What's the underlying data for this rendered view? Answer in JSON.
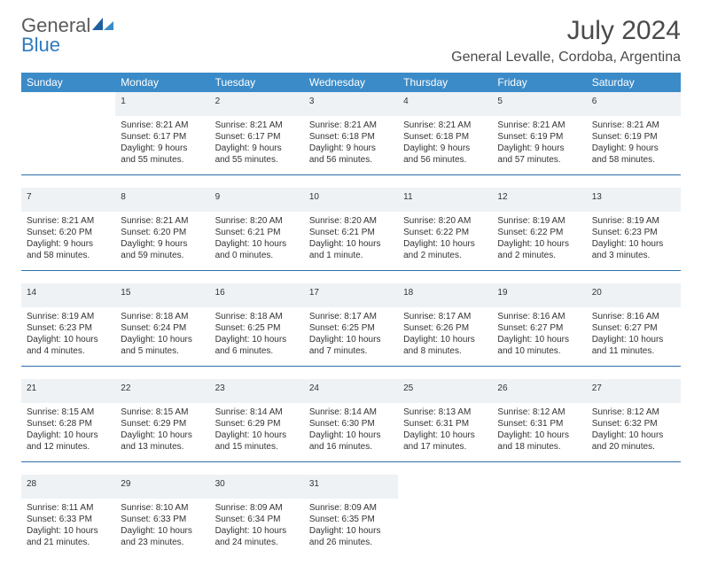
{
  "logo": {
    "word1": "General",
    "word2": "Blue"
  },
  "title": "July 2024",
  "location": "General Levalle, Cordoba, Argentina",
  "colors": {
    "header_bg": "#3b8bc8",
    "header_text": "#ffffff",
    "daynum_bg": "#eef2f5",
    "daynum_text": "#6b6b6b",
    "rule": "#2f6fa8",
    "body_text": "#333333",
    "logo_gray": "#5a5a5a",
    "logo_blue": "#2f7bbf"
  },
  "weekdays": [
    "Sunday",
    "Monday",
    "Tuesday",
    "Wednesday",
    "Thursday",
    "Friday",
    "Saturday"
  ],
  "weeks": [
    [
      null,
      {
        "n": "1",
        "sr": "Sunrise: 8:21 AM",
        "ss": "Sunset: 6:17 PM",
        "d1": "Daylight: 9 hours",
        "d2": "and 55 minutes."
      },
      {
        "n": "2",
        "sr": "Sunrise: 8:21 AM",
        "ss": "Sunset: 6:17 PM",
        "d1": "Daylight: 9 hours",
        "d2": "and 55 minutes."
      },
      {
        "n": "3",
        "sr": "Sunrise: 8:21 AM",
        "ss": "Sunset: 6:18 PM",
        "d1": "Daylight: 9 hours",
        "d2": "and 56 minutes."
      },
      {
        "n": "4",
        "sr": "Sunrise: 8:21 AM",
        "ss": "Sunset: 6:18 PM",
        "d1": "Daylight: 9 hours",
        "d2": "and 56 minutes."
      },
      {
        "n": "5",
        "sr": "Sunrise: 8:21 AM",
        "ss": "Sunset: 6:19 PM",
        "d1": "Daylight: 9 hours",
        "d2": "and 57 minutes."
      },
      {
        "n": "6",
        "sr": "Sunrise: 8:21 AM",
        "ss": "Sunset: 6:19 PM",
        "d1": "Daylight: 9 hours",
        "d2": "and 58 minutes."
      }
    ],
    [
      {
        "n": "7",
        "sr": "Sunrise: 8:21 AM",
        "ss": "Sunset: 6:20 PM",
        "d1": "Daylight: 9 hours",
        "d2": "and 58 minutes."
      },
      {
        "n": "8",
        "sr": "Sunrise: 8:21 AM",
        "ss": "Sunset: 6:20 PM",
        "d1": "Daylight: 9 hours",
        "d2": "and 59 minutes."
      },
      {
        "n": "9",
        "sr": "Sunrise: 8:20 AM",
        "ss": "Sunset: 6:21 PM",
        "d1": "Daylight: 10 hours",
        "d2": "and 0 minutes."
      },
      {
        "n": "10",
        "sr": "Sunrise: 8:20 AM",
        "ss": "Sunset: 6:21 PM",
        "d1": "Daylight: 10 hours",
        "d2": "and 1 minute."
      },
      {
        "n": "11",
        "sr": "Sunrise: 8:20 AM",
        "ss": "Sunset: 6:22 PM",
        "d1": "Daylight: 10 hours",
        "d2": "and 2 minutes."
      },
      {
        "n": "12",
        "sr": "Sunrise: 8:19 AM",
        "ss": "Sunset: 6:22 PM",
        "d1": "Daylight: 10 hours",
        "d2": "and 2 minutes."
      },
      {
        "n": "13",
        "sr": "Sunrise: 8:19 AM",
        "ss": "Sunset: 6:23 PM",
        "d1": "Daylight: 10 hours",
        "d2": "and 3 minutes."
      }
    ],
    [
      {
        "n": "14",
        "sr": "Sunrise: 8:19 AM",
        "ss": "Sunset: 6:23 PM",
        "d1": "Daylight: 10 hours",
        "d2": "and 4 minutes."
      },
      {
        "n": "15",
        "sr": "Sunrise: 8:18 AM",
        "ss": "Sunset: 6:24 PM",
        "d1": "Daylight: 10 hours",
        "d2": "and 5 minutes."
      },
      {
        "n": "16",
        "sr": "Sunrise: 8:18 AM",
        "ss": "Sunset: 6:25 PM",
        "d1": "Daylight: 10 hours",
        "d2": "and 6 minutes."
      },
      {
        "n": "17",
        "sr": "Sunrise: 8:17 AM",
        "ss": "Sunset: 6:25 PM",
        "d1": "Daylight: 10 hours",
        "d2": "and 7 minutes."
      },
      {
        "n": "18",
        "sr": "Sunrise: 8:17 AM",
        "ss": "Sunset: 6:26 PM",
        "d1": "Daylight: 10 hours",
        "d2": "and 8 minutes."
      },
      {
        "n": "19",
        "sr": "Sunrise: 8:16 AM",
        "ss": "Sunset: 6:27 PM",
        "d1": "Daylight: 10 hours",
        "d2": "and 10 minutes."
      },
      {
        "n": "20",
        "sr": "Sunrise: 8:16 AM",
        "ss": "Sunset: 6:27 PM",
        "d1": "Daylight: 10 hours",
        "d2": "and 11 minutes."
      }
    ],
    [
      {
        "n": "21",
        "sr": "Sunrise: 8:15 AM",
        "ss": "Sunset: 6:28 PM",
        "d1": "Daylight: 10 hours",
        "d2": "and 12 minutes."
      },
      {
        "n": "22",
        "sr": "Sunrise: 8:15 AM",
        "ss": "Sunset: 6:29 PM",
        "d1": "Daylight: 10 hours",
        "d2": "and 13 minutes."
      },
      {
        "n": "23",
        "sr": "Sunrise: 8:14 AM",
        "ss": "Sunset: 6:29 PM",
        "d1": "Daylight: 10 hours",
        "d2": "and 15 minutes."
      },
      {
        "n": "24",
        "sr": "Sunrise: 8:14 AM",
        "ss": "Sunset: 6:30 PM",
        "d1": "Daylight: 10 hours",
        "d2": "and 16 minutes."
      },
      {
        "n": "25",
        "sr": "Sunrise: 8:13 AM",
        "ss": "Sunset: 6:31 PM",
        "d1": "Daylight: 10 hours",
        "d2": "and 17 minutes."
      },
      {
        "n": "26",
        "sr": "Sunrise: 8:12 AM",
        "ss": "Sunset: 6:31 PM",
        "d1": "Daylight: 10 hours",
        "d2": "and 18 minutes."
      },
      {
        "n": "27",
        "sr": "Sunrise: 8:12 AM",
        "ss": "Sunset: 6:32 PM",
        "d1": "Daylight: 10 hours",
        "d2": "and 20 minutes."
      }
    ],
    [
      {
        "n": "28",
        "sr": "Sunrise: 8:11 AM",
        "ss": "Sunset: 6:33 PM",
        "d1": "Daylight: 10 hours",
        "d2": "and 21 minutes."
      },
      {
        "n": "29",
        "sr": "Sunrise: 8:10 AM",
        "ss": "Sunset: 6:33 PM",
        "d1": "Daylight: 10 hours",
        "d2": "and 23 minutes."
      },
      {
        "n": "30",
        "sr": "Sunrise: 8:09 AM",
        "ss": "Sunset: 6:34 PM",
        "d1": "Daylight: 10 hours",
        "d2": "and 24 minutes."
      },
      {
        "n": "31",
        "sr": "Sunrise: 8:09 AM",
        "ss": "Sunset: 6:35 PM",
        "d1": "Daylight: 10 hours",
        "d2": "and 26 minutes."
      },
      null,
      null,
      null
    ]
  ]
}
